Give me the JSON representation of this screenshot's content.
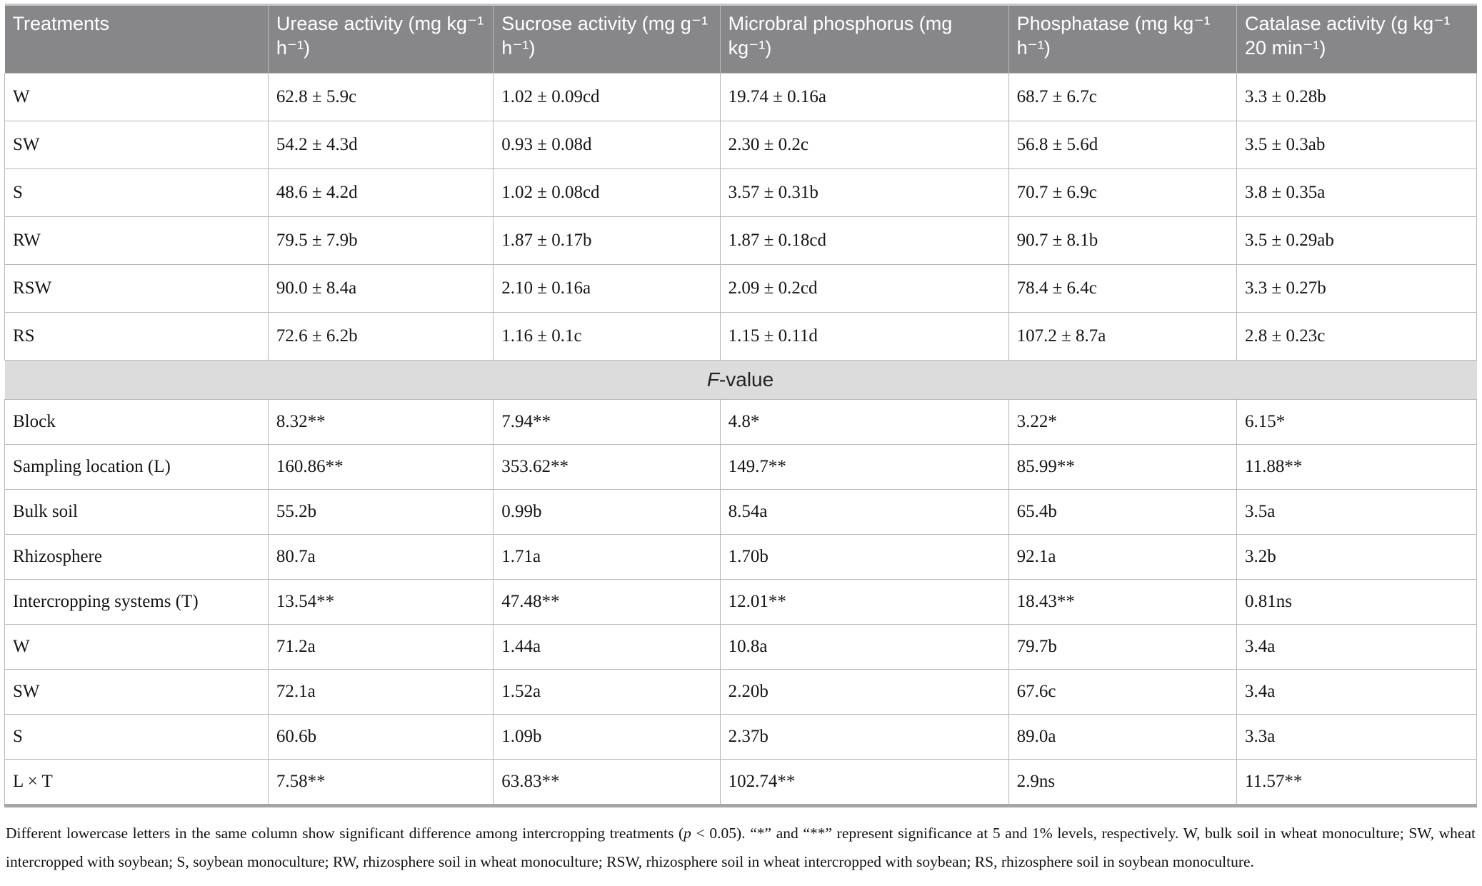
{
  "colors": {
    "header_background": "#87878a",
    "header_text": "#ffffff",
    "section_band_background": "#dcdcdc",
    "cell_border": "#b7b7b7",
    "body_text": "#151515"
  },
  "table": {
    "columns": [
      "Treatments",
      "Urease activity (mg kg⁻¹ h⁻¹)",
      "Sucrose activity (mg g⁻¹ h⁻¹)",
      "Microbral phosphorus (mg kg⁻¹)",
      "Phosphatase (mg kg⁻¹ h⁻¹)",
      "Catalase activity (g kg⁻¹ 20 min⁻¹)"
    ],
    "treatment_rows": [
      {
        "label": "W",
        "cells": [
          "62.8 ± 5.9c",
          "1.02 ± 0.09cd",
          "19.74 ± 0.16a",
          "68.7 ± 6.7c",
          "3.3 ± 0.28b"
        ]
      },
      {
        "label": "SW",
        "cells": [
          "54.2 ± 4.3d",
          "0.93 ± 0.08d",
          "2.30 ± 0.2c",
          "56.8 ± 5.6d",
          "3.5 ± 0.3ab"
        ]
      },
      {
        "label": "S",
        "cells": [
          "48.6 ± 4.2d",
          "1.02 ± 0.08cd",
          "3.57 ± 0.31b",
          "70.7 ± 6.9c",
          "3.8 ± 0.35a"
        ]
      },
      {
        "label": "RW",
        "cells": [
          "79.5 ± 7.9b",
          "1.87 ± 0.17b",
          "1.87 ± 0.18cd",
          "90.7 ± 8.1b",
          "3.5 ± 0.29ab"
        ]
      },
      {
        "label": "RSW",
        "cells": [
          "90.0 ± 8.4a",
          "2.10 ± 0.16a",
          "2.09 ± 0.2cd",
          "78.4 ± 6.4c",
          "3.3 ± 0.27b"
        ]
      },
      {
        "label": "RS",
        "cells": [
          "72.6 ± 6.2b",
          "1.16 ± 0.1c",
          "1.15 ± 0.11d",
          "107.2 ± 8.7a",
          "2.8 ± 0.23c"
        ]
      }
    ],
    "section": {
      "label_italic": "F",
      "label_rest": "-value"
    },
    "f_rows": [
      {
        "label": "Block",
        "cells": [
          "8.32**",
          "7.94**",
          "4.8*",
          "3.22*",
          "6.15*"
        ]
      },
      {
        "label": "Sampling location (L)",
        "cells": [
          "160.86**",
          "353.62**",
          "149.7**",
          "85.99**",
          "11.88**"
        ]
      },
      {
        "label": "Bulk soil",
        "cells": [
          "55.2b",
          "0.99b",
          "8.54a",
          "65.4b",
          "3.5a"
        ]
      },
      {
        "label": "Rhizosphere",
        "cells": [
          "80.7a",
          "1.71a",
          "1.70b",
          "92.1a",
          "3.2b"
        ]
      },
      {
        "label": "Intercropping systems (T)",
        "cells": [
          "13.54**",
          "47.48**",
          "12.01**",
          "18.43**",
          "0.81ns"
        ]
      },
      {
        "label": "W",
        "cells": [
          "71.2a",
          "1.44a",
          "10.8a",
          "79.7b",
          "3.4a"
        ]
      },
      {
        "label": "SW",
        "cells": [
          "72.1a",
          "1.52a",
          "2.20b",
          "67.6c",
          "3.4a"
        ]
      },
      {
        "label": "S",
        "cells": [
          "60.6b",
          "1.09b",
          "2.37b",
          "89.0a",
          "3.3a"
        ]
      },
      {
        "label": "L × T",
        "cells": [
          "7.58**",
          "63.83**",
          "102.74**",
          "2.9ns",
          "11.57**"
        ]
      }
    ]
  },
  "footnote": {
    "part1": "Different lowercase letters in the same column show significant difference among intercropping treatments (",
    "p_italic": "p",
    "part2": " < 0.05). “*” and “**” represent significance at 5 and 1% levels, respectively. W, bulk soil in wheat monoculture; SW, wheat intercropped with soybean; S, soybean monoculture; RW, rhizosphere soil in wheat monoculture; RSW, rhizosphere soil in wheat intercropped with soybean; RS, rhizosphere soil in soybean monoculture."
  }
}
